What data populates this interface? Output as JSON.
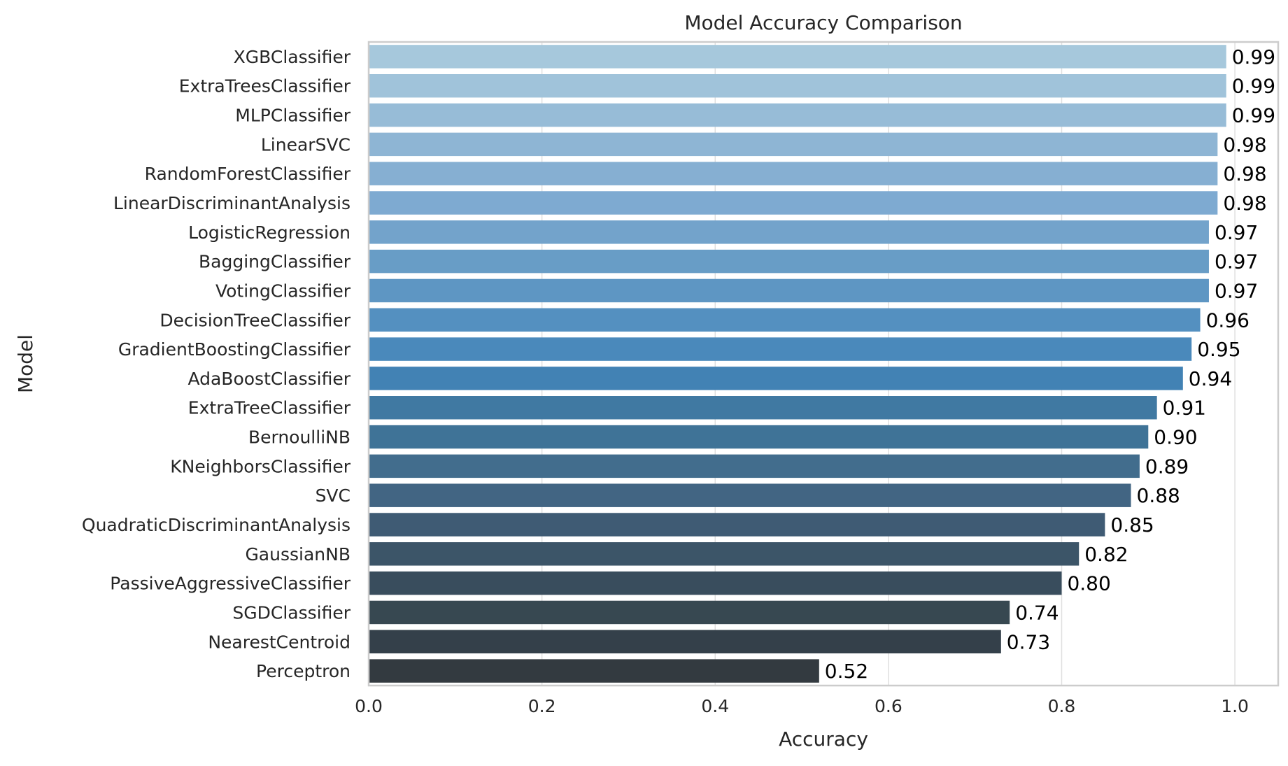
{
  "chart_data": {
    "type": "bar",
    "orientation": "horizontal",
    "title": "Model Accuracy Comparison",
    "xlabel": "Accuracy",
    "ylabel": "Model",
    "xlim": [
      0.0,
      1.05
    ],
    "xticks": [
      0.0,
      0.2,
      0.4,
      0.6,
      0.8,
      1.0
    ],
    "xtick_labels": [
      "0.0",
      "0.2",
      "0.4",
      "0.6",
      "0.8",
      "1.0"
    ],
    "grid": "vertical",
    "legend": "none",
    "categories": [
      "XGBClassifier",
      "ExtraTreesClassifier",
      "MLPClassifier",
      "LinearSVC",
      "RandomForestClassifier",
      "LinearDiscriminantAnalysis",
      "LogisticRegression",
      "BaggingClassifier",
      "VotingClassifier",
      "DecisionTreeClassifier",
      "GradientBoostingClassifier",
      "AdaBoostClassifier",
      "ExtraTreeClassifier",
      "BernoulliNB",
      "KNeighborsClassifier",
      "SVC",
      "QuadraticDiscriminantAnalysis",
      "GaussianNB",
      "PassiveAggressiveClassifier",
      "SGDClassifier",
      "NearestCentroid",
      "Perceptron"
    ],
    "values": [
      0.99,
      0.99,
      0.99,
      0.98,
      0.98,
      0.98,
      0.97,
      0.97,
      0.97,
      0.96,
      0.95,
      0.94,
      0.91,
      0.9,
      0.89,
      0.88,
      0.85,
      0.82,
      0.8,
      0.74,
      0.73,
      0.52
    ],
    "value_labels": [
      "0.99",
      "0.99",
      "0.99",
      "0.98",
      "0.98",
      "0.98",
      "0.97",
      "0.97",
      "0.97",
      "0.96",
      "0.95",
      "0.94",
      "0.91",
      "0.90",
      "0.89",
      "0.88",
      "0.85",
      "0.82",
      "0.80",
      "0.74",
      "0.73",
      "0.52"
    ],
    "colors": [
      "#a6c8dc",
      "#a0c3da",
      "#97bcd7",
      "#8eb5d4",
      "#86afd2",
      "#7eaad1",
      "#73a3cb",
      "#689dc6",
      "#5e96c3",
      "#5490c0",
      "#4a89bb",
      "#4282b4",
      "#4079a2",
      "#3f7397",
      "#426d8d",
      "#426583",
      "#3f5b74",
      "#3c5568",
      "#394d5d",
      "#374851",
      "#34404a",
      "#333a40"
    ]
  }
}
